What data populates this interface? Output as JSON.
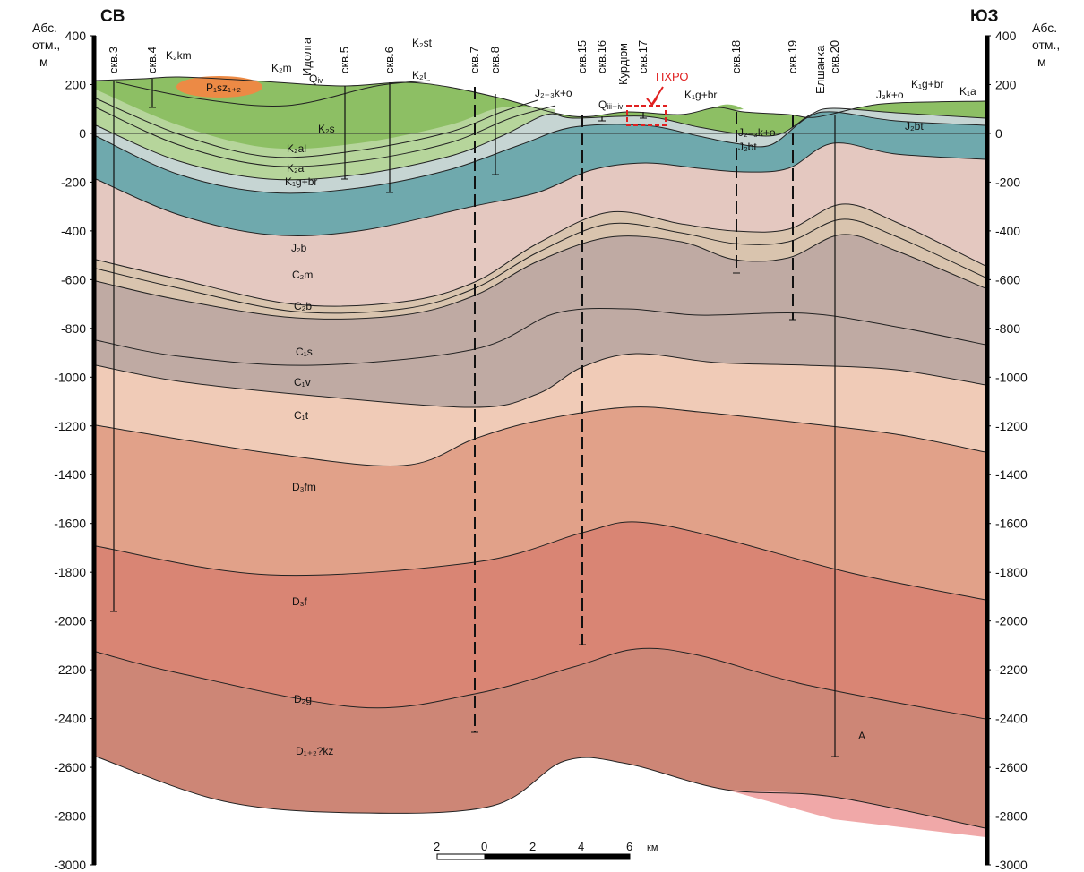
{
  "header": {
    "left": "СВ",
    "right": "ЮЗ"
  },
  "axis": {
    "label_left": [
      "Абс.",
      "отм.,",
      "м"
    ],
    "label_right": [
      "Абс.",
      "отм.,",
      "м"
    ],
    "ticks": [
      "400",
      "200",
      "0",
      "-200",
      "-400",
      "-600",
      "-800",
      "-1000",
      "-1200",
      "-1400",
      "-1600",
      "-1800",
      "-2000",
      "-2200",
      "-2400",
      "-2600",
      "-2800",
      "-3000"
    ]
  },
  "wells": [
    "скв.3",
    "скв.4",
    "скв.5",
    "скв.6",
    "скв.7",
    "скв.8",
    "скв.15",
    "скв.16",
    "скв.17",
    "скв.18",
    "скв.19",
    "скв.20"
  ],
  "places": [
    "Идолга",
    "Курдюм",
    "Елшанка"
  ],
  "layers": [
    "K₂km",
    "K₂m",
    "Qᵢᵥ",
    "K₂st",
    "K₂t",
    "P₁sz₁₊₂",
    "K₂s",
    "K₂al",
    "K₂a",
    "K₁g+br",
    "J₂b",
    "C₂m",
    "C₂b",
    "C₁s",
    "C₁v",
    "C₁t",
    "D₃fm",
    "D₃f",
    "D₂g",
    "D₁₊₂?kz",
    "J₂₋₃k+o",
    "Qᵢᵢᵢ₋ᵢᵥ",
    "K₁g+br",
    "J₂₋₃k+o",
    "J₂bt",
    "J₃k+o",
    "K₁g+br",
    "K₁a",
    "J₂bt",
    "A"
  ],
  "annotation": "ПХРО",
  "scale": {
    "ticks": [
      "2",
      "0",
      "2",
      "4",
      "6"
    ],
    "unit": "км"
  }
}
